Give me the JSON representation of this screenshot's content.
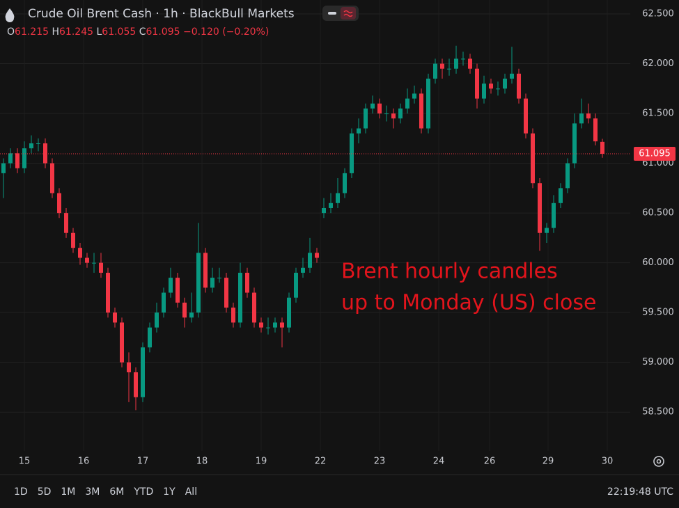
{
  "chart_data": {
    "type": "candlestick",
    "title": "Crude Oil Brent Cash · 1h · BlackBull Markets",
    "ohlc_labels": [
      "O",
      "H",
      "L",
      "C"
    ],
    "change": "−0.120 (−0.20%)",
    "annotation": [
      "Brent hourly candles",
      "up to Monday (US) close"
    ],
    "up_color": "#089981",
    "down_color": "#f23645",
    "annotation_color": "#e3141c",
    "last_price_line": true,
    "grid": true,
    "open": [
      60.9,
      61.0,
      61.1,
      60.95,
      61.15,
      61.2,
      61.2,
      61.0,
      60.7,
      60.5,
      60.3,
      60.15,
      60.05,
      60.0,
      60.0,
      59.9,
      59.5,
      59.4,
      59.0,
      58.9,
      58.65,
      59.15,
      59.35,
      59.5,
      59.7,
      59.85,
      59.6,
      59.45,
      59.5,
      60.1,
      59.75,
      59.85,
      59.85,
      59.55,
      59.4,
      59.9,
      59.7,
      59.4,
      59.35,
      59.35,
      59.4,
      59.35,
      59.65,
      59.9,
      59.95,
      60.1,
      60.5,
      60.55,
      60.6,
      60.7,
      60.9,
      61.3,
      61.35,
      61.55,
      61.6,
      61.5,
      61.5,
      61.45,
      61.55,
      61.65,
      61.7,
      61.35,
      61.85,
      62.0,
      61.95,
      61.95,
      62.05,
      62.05,
      61.95,
      61.65,
      61.8,
      61.75,
      61.75,
      61.85,
      61.9,
      61.65,
      61.3,
      60.8,
      60.3,
      60.35,
      60.6,
      60.75,
      61.0,
      61.4,
      61.5,
      61.45,
      61.215
    ],
    "high": [
      61.05,
      61.15,
      61.15,
      61.22,
      61.28,
      61.25,
      61.25,
      61.05,
      60.75,
      60.55,
      60.35,
      60.2,
      60.1,
      60.1,
      60.1,
      59.95,
      59.55,
      59.45,
      59.1,
      58.95,
      59.2,
      59.4,
      59.6,
      59.75,
      59.95,
      59.9,
      59.65,
      59.7,
      60.4,
      60.15,
      59.95,
      59.95,
      59.9,
      59.6,
      60.0,
      59.95,
      59.75,
      59.45,
      59.45,
      59.45,
      59.45,
      59.7,
      59.95,
      60.05,
      60.25,
      60.15,
      60.65,
      60.7,
      60.85,
      60.95,
      61.35,
      61.45,
      61.6,
      61.68,
      61.65,
      61.58,
      61.55,
      61.6,
      61.75,
      61.78,
      61.75,
      61.9,
      62.05,
      62.05,
      62.05,
      62.18,
      62.12,
      62.1,
      62.0,
      61.88,
      61.85,
      61.82,
      61.9,
      62.17,
      61.95,
      61.7,
      61.35,
      60.85,
      60.4,
      60.68,
      60.8,
      61.05,
      61.5,
      61.65,
      61.6,
      61.5,
      61.245
    ],
    "low": [
      60.65,
      60.95,
      60.9,
      60.9,
      61.1,
      61.12,
      60.95,
      60.65,
      60.45,
      60.25,
      60.1,
      59.98,
      59.95,
      59.9,
      59.85,
      59.45,
      59.35,
      58.95,
      58.6,
      58.52,
      58.6,
      59.1,
      59.3,
      59.45,
      59.65,
      59.55,
      59.35,
      59.4,
      59.45,
      59.7,
      59.7,
      59.8,
      59.5,
      59.35,
      59.35,
      59.65,
      59.35,
      59.3,
      59.28,
      59.3,
      59.15,
      59.3,
      59.6,
      59.85,
      59.9,
      60.0,
      60.45,
      60.5,
      60.55,
      60.65,
      60.85,
      61.2,
      61.3,
      61.5,
      61.45,
      61.42,
      61.35,
      61.4,
      61.5,
      61.6,
      61.3,
      61.3,
      61.8,
      61.85,
      61.88,
      61.9,
      61.98,
      61.9,
      61.55,
      61.6,
      61.7,
      61.68,
      61.7,
      61.8,
      61.6,
      61.25,
      60.75,
      60.12,
      60.2,
      60.3,
      60.55,
      60.7,
      60.95,
      61.35,
      61.4,
      61.18,
      61.055
    ],
    "close": [
      61.0,
      61.1,
      60.95,
      61.15,
      61.2,
      61.2,
      61.0,
      60.7,
      60.5,
      60.3,
      60.15,
      60.05,
      60.0,
      60.0,
      59.9,
      59.5,
      59.4,
      59.0,
      58.9,
      58.65,
      59.15,
      59.35,
      59.5,
      59.7,
      59.85,
      59.6,
      59.45,
      59.5,
      60.1,
      59.75,
      59.85,
      59.85,
      59.55,
      59.4,
      59.9,
      59.7,
      59.4,
      59.35,
      59.35,
      59.4,
      59.35,
      59.65,
      59.9,
      59.95,
      60.1,
      60.05,
      60.55,
      60.6,
      60.7,
      60.9,
      61.3,
      61.35,
      61.55,
      61.6,
      61.5,
      61.5,
      61.45,
      61.55,
      61.65,
      61.7,
      61.35,
      61.85,
      62.0,
      61.95,
      61.95,
      62.05,
      62.05,
      61.95,
      61.65,
      61.8,
      61.75,
      61.75,
      61.85,
      61.9,
      61.65,
      61.3,
      60.8,
      60.3,
      60.35,
      60.6,
      60.75,
      61.0,
      61.4,
      61.5,
      61.45,
      61.22,
      61.095
    ],
    "xlim": [
      -0.5,
      90
    ],
    "xticks": [
      {
        "value": 3,
        "label": "15"
      },
      {
        "value": 11.5,
        "label": "16"
      },
      {
        "value": 20,
        "label": "17"
      },
      {
        "value": 28.5,
        "label": "18"
      },
      {
        "value": 37,
        "label": "19"
      },
      {
        "value": 45.5,
        "label": "22"
      },
      {
        "value": 54,
        "label": "23"
      },
      {
        "value": 62.5,
        "label": "24"
      },
      {
        "value": 69.8,
        "label": "26"
      },
      {
        "value": 78.2,
        "label": "29"
      },
      {
        "value": 86.7,
        "label": "30"
      }
    ],
    "ylim": [
      58.11,
      62.64
    ],
    "yticks": [
      {
        "value": 58.5,
        "label": "58.500"
      },
      {
        "value": 59,
        "label": "59.000"
      },
      {
        "value": 59.5,
        "label": "59.500"
      },
      {
        "value": 60,
        "label": "60.000"
      },
      {
        "value": 60.5,
        "label": "60.500"
      },
      {
        "value": 61,
        "label": "61.000"
      },
      {
        "value": 61.5,
        "label": "61.500"
      },
      {
        "value": 62,
        "label": "62.000"
      },
      {
        "value": 62.5,
        "label": "62.500"
      }
    ]
  },
  "toolbar": {
    "ranges": [
      "1D",
      "5D",
      "1M",
      "3M",
      "6M",
      "YTD",
      "1Y",
      "All"
    ],
    "clock": "22:19:48 UTC"
  }
}
